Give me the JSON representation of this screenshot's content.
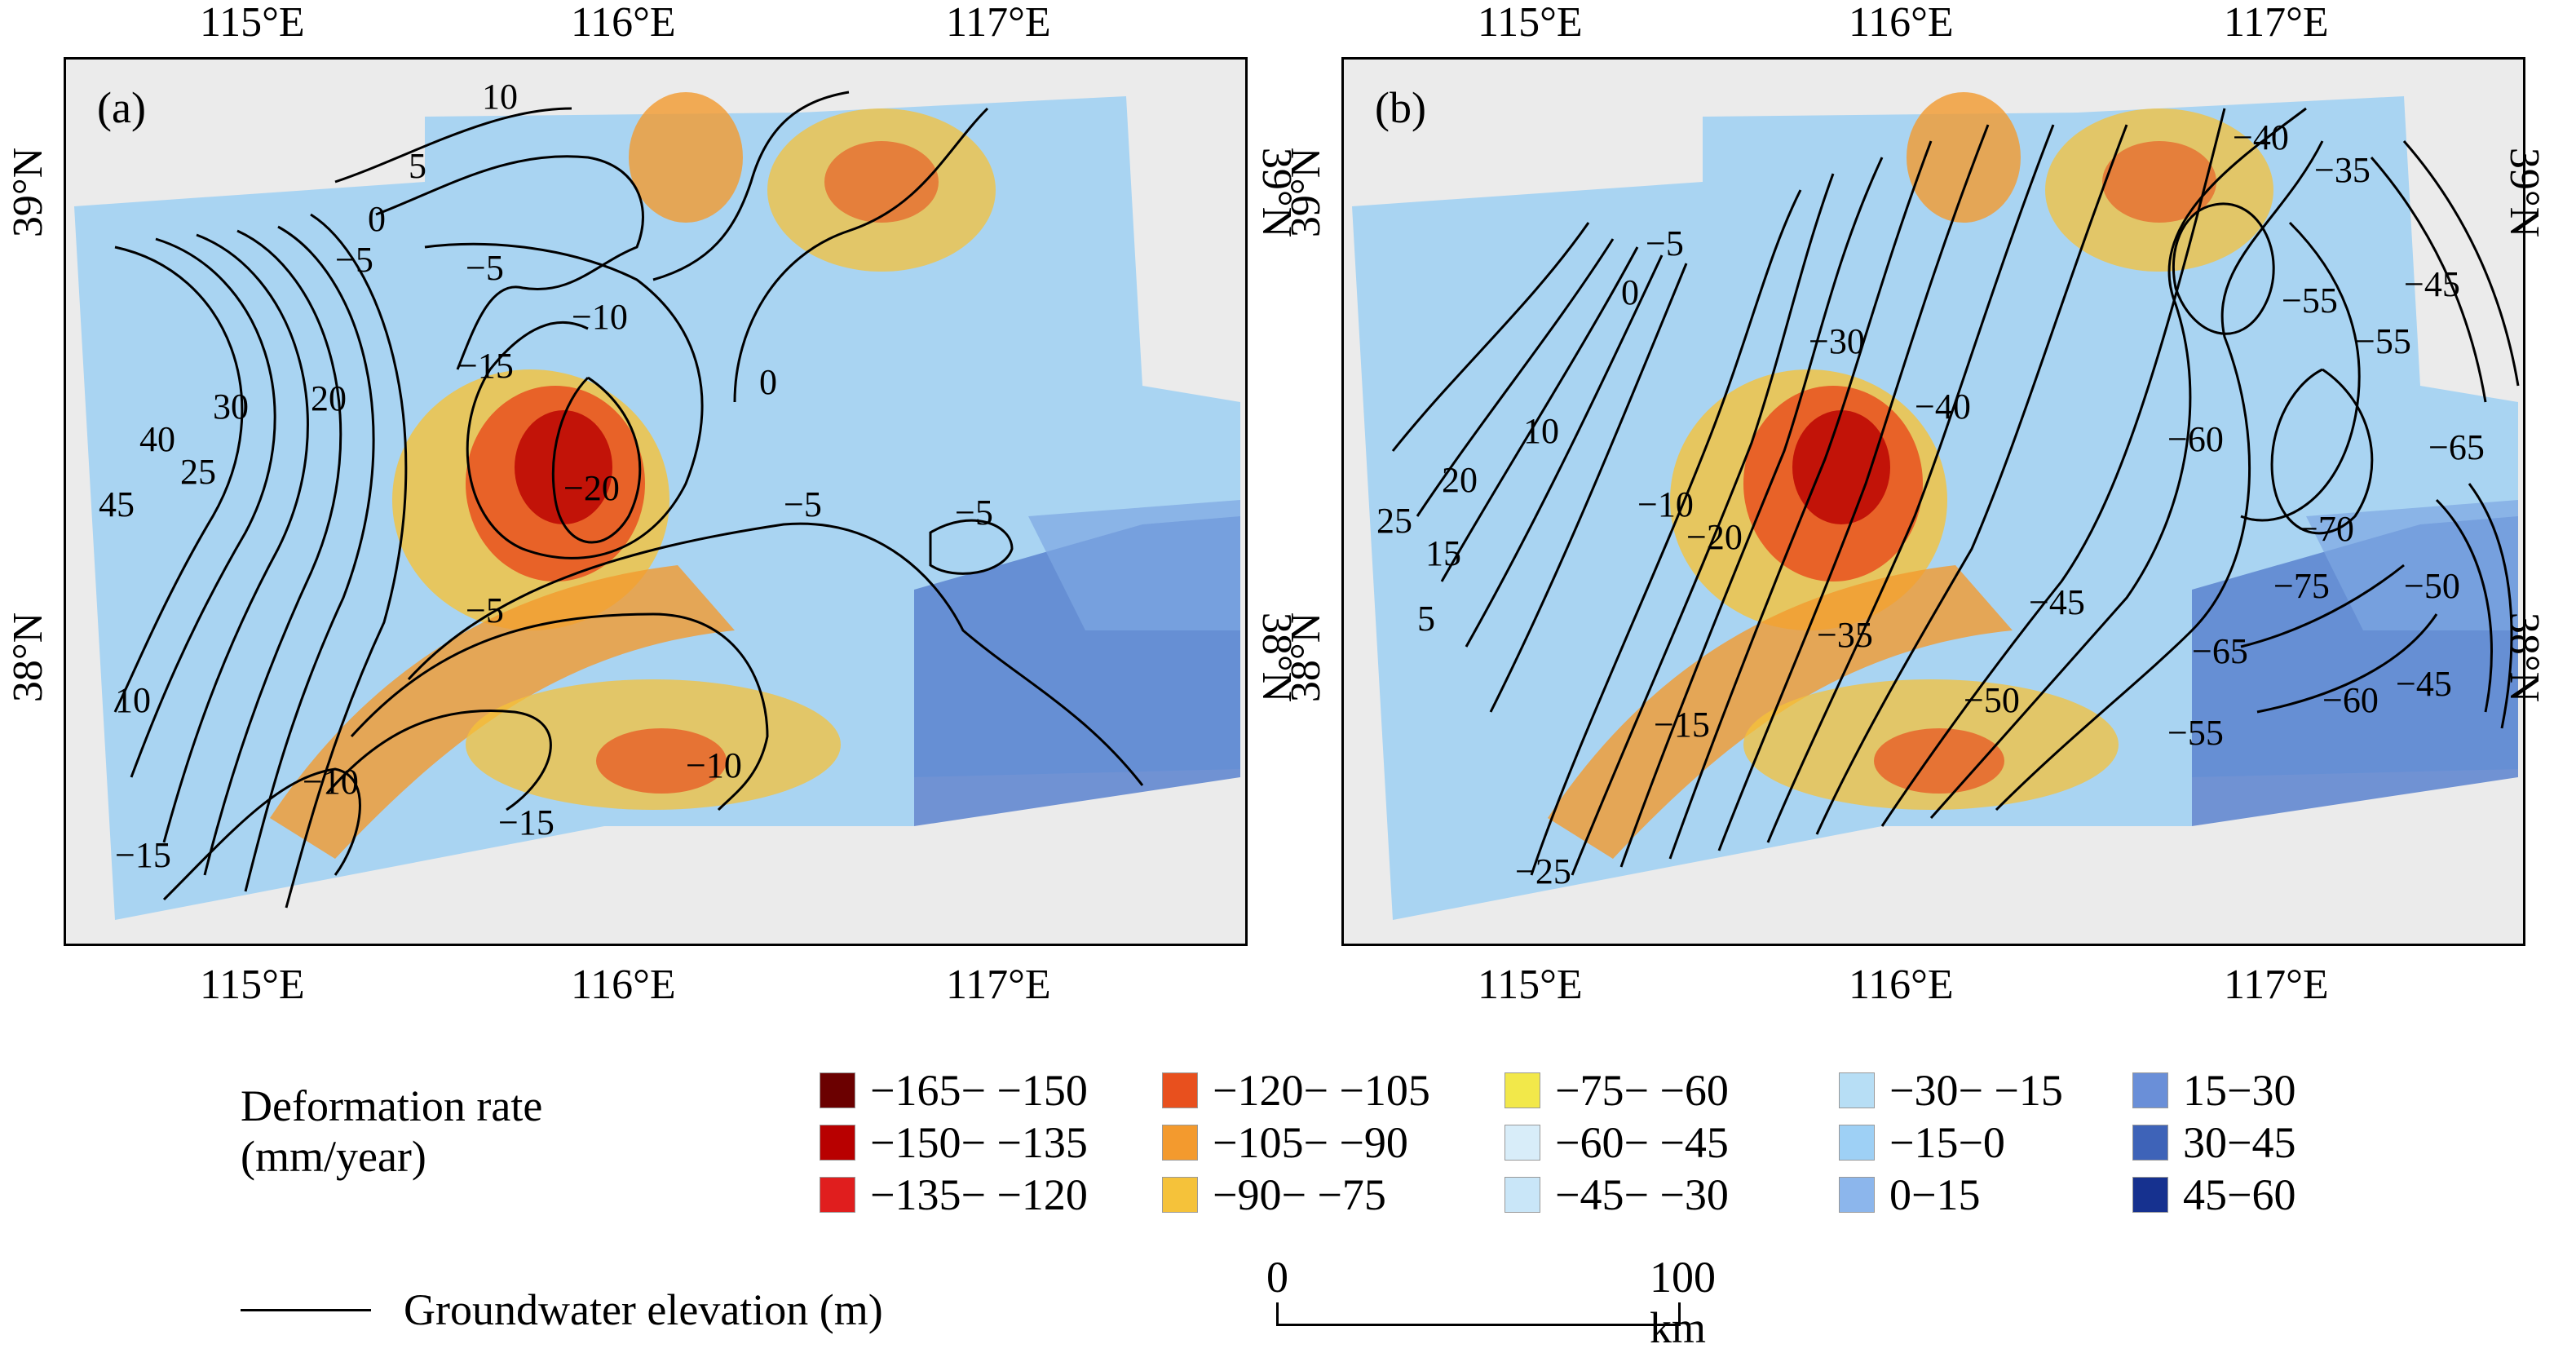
{
  "panels": [
    {
      "label": "(a)"
    },
    {
      "label": "(b)"
    }
  ],
  "axes": {
    "lon_ticks": [
      "115°E",
      "116°E",
      "117°E"
    ],
    "lat_ticks": [
      "39°N",
      "38°N"
    ]
  },
  "contours_a": [
    "10",
    "5",
    "0",
    "−5",
    "−5",
    "−10",
    "−15",
    "−20",
    "0",
    "−5",
    "−5",
    "45",
    "40",
    "30",
    "20",
    "25",
    "10",
    "−5",
    "−10",
    "−10",
    "−15",
    "−15"
  ],
  "contours_b": [
    "0",
    "−5",
    "−30",
    "−40",
    "−40",
    "−35",
    "−45",
    "−55",
    "−55",
    "−60",
    "−65",
    "−70",
    "−75",
    "−50",
    "−45",
    "−65",
    "−60",
    "−55",
    "−45",
    "−50",
    "−35",
    "−20",
    "−10",
    "25",
    "20",
    "15",
    "10",
    "5",
    "−15",
    "−25"
  ],
  "legend": {
    "title_line1": "Deformation rate",
    "title_line2": "(mm/year)",
    "items": [
      {
        "label": "−165− −150",
        "color": "#6b0000"
      },
      {
        "label": "−120− −105",
        "color": "#e8501e"
      },
      {
        "label": "−75− −60",
        "color": "#f2e84a"
      },
      {
        "label": "−30− −15",
        "color": "#b7def5"
      },
      {
        "label": "15−30",
        "color": "#6a8fd8"
      },
      {
        "label": "−150− −135",
        "color": "#b80000"
      },
      {
        "label": "−105− −90",
        "color": "#f39a2e"
      },
      {
        "label": "−60− −45",
        "color": "#d8edf9"
      },
      {
        "label": "−15−0",
        "color": "#9ed0f5"
      },
      {
        "label": "30−45",
        "color": "#3e63b8"
      },
      {
        "label": "−135− −120",
        "color": "#e01e1e"
      },
      {
        "label": "−90− −75",
        "color": "#f5c23a"
      },
      {
        "label": "−45− −30",
        "color": "#c9e6f8"
      },
      {
        "label": "0−15",
        "color": "#8cb6ec"
      },
      {
        "label": "45−60",
        "color": "#16318f"
      }
    ],
    "line_label": "Groundwater elevation (m)"
  },
  "scalebar": {
    "zero": "0",
    "end": "100 km"
  }
}
